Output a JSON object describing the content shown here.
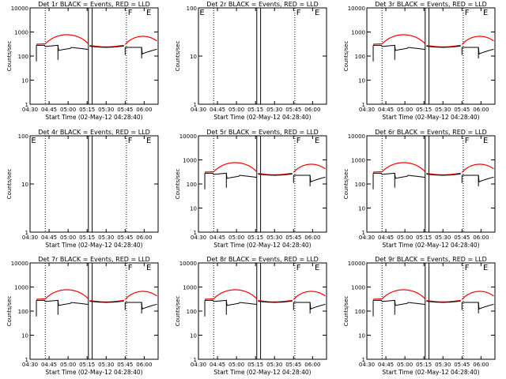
{
  "figure": {
    "background": "#ffffff",
    "event_color": "#000000",
    "lld_color": "#ff0000"
  },
  "chart_data": [
    {
      "type": "line",
      "title": "Det 1r BLACK = Events, RED = LLD",
      "xlabel": "Start Time (02-May-12 04:28:40)",
      "ylabel": "Counts/sec",
      "yscale": "log",
      "ylim": [
        1,
        10000
      ],
      "yticks": [
        "1",
        "10",
        "100",
        "1000",
        "10000"
      ],
      "xticks": [
        "04:30",
        "04:45",
        "05:00",
        "05:15",
        "05:30",
        "05:45",
        "06:00"
      ],
      "markers": [
        "F",
        "E"
      ],
      "no_data": false
    },
    {
      "type": "line",
      "title": "Det 2r BLACK = Events, RED = LLD",
      "xlabel": "Start Time (02-May-12 04:28:40)",
      "ylabel": "Counts/sec",
      "yscale": "log",
      "ylim": [
        1,
        100
      ],
      "yticks": [
        "1",
        "10",
        "100"
      ],
      "xticks": [
        "04:30",
        "04:45",
        "05:00",
        "05:15",
        "05:30",
        "05:45",
        "06:00"
      ],
      "markers": [
        "E",
        "F",
        "E"
      ],
      "no_data": true
    },
    {
      "type": "line",
      "title": "Det 3r BLACK = Events, RED = LLD",
      "xlabel": "Start Time (02-May-12 04:28:40)",
      "ylabel": "Counts/sec",
      "yscale": "log",
      "ylim": [
        1,
        10000
      ],
      "yticks": [
        "1",
        "10",
        "100",
        "1000",
        "10000"
      ],
      "xticks": [
        "04:30",
        "04:45",
        "05:00",
        "05:15",
        "05:30",
        "05:45",
        "06:00"
      ],
      "markers": [
        "F",
        "E"
      ],
      "no_data": false
    },
    {
      "type": "line",
      "title": "Det 4r BLACK = Events, RED = LLD",
      "xlabel": "Start Time (02-May-12 04:28:40)",
      "ylabel": "Counts/sec",
      "yscale": "log",
      "ylim": [
        1,
        100
      ],
      "yticks": [
        "1",
        "10",
        "100"
      ],
      "xticks": [
        "04:30",
        "04:45",
        "05:00",
        "05:15",
        "05:30",
        "05:45",
        "06:00"
      ],
      "markers": [
        "E",
        "F",
        "E"
      ],
      "no_data": true
    },
    {
      "type": "line",
      "title": "Det 5r BLACK = Events, RED = LLD",
      "xlabel": "Start Time (02-May-12 04:28:40)",
      "ylabel": "Counts/sec",
      "yscale": "log",
      "ylim": [
        1,
        10000
      ],
      "yticks": [
        "1",
        "10",
        "100",
        "1000",
        "10000"
      ],
      "xticks": [
        "04:30",
        "04:45",
        "05:00",
        "05:15",
        "05:30",
        "05:45",
        "06:00"
      ],
      "markers": [
        "F",
        "E"
      ],
      "no_data": false
    },
    {
      "type": "line",
      "title": "Det 6r BLACK = Events, RED = LLD",
      "xlabel": "Start Time (02-May-12 04:28:40)",
      "ylabel": "Counts/sec",
      "yscale": "log",
      "ylim": [
        1,
        10000
      ],
      "yticks": [
        "1",
        "10",
        "100",
        "1000",
        "10000"
      ],
      "xticks": [
        "04:30",
        "04:45",
        "05:00",
        "05:15",
        "05:30",
        "05:45",
        "06:00"
      ],
      "markers": [
        "F",
        "E"
      ],
      "no_data": false
    },
    {
      "type": "line",
      "title": "Det 7r BLACK = Events, RED = LLD",
      "xlabel": "Start Time (02-May-12 04:28:40)",
      "ylabel": "Counts/sec",
      "yscale": "log",
      "ylim": [
        1,
        10000
      ],
      "yticks": [
        "1",
        "10",
        "100",
        "1000",
        "10000"
      ],
      "xticks": [
        "04:30",
        "04:45",
        "05:00",
        "05:15",
        "05:30",
        "05:45",
        "06:00"
      ],
      "markers": [
        "F",
        "E"
      ],
      "no_data": false
    },
    {
      "type": "line",
      "title": "Det 8r BLACK = Events, RED = LLD",
      "xlabel": "Start Time (02-May-12 04:28:40)",
      "ylabel": "Counts/sec",
      "yscale": "log",
      "ylim": [
        1,
        10000
      ],
      "yticks": [
        "1",
        "10",
        "100",
        "1000",
        "10000"
      ],
      "xticks": [
        "04:30",
        "04:45",
        "05:00",
        "05:15",
        "05:30",
        "05:45",
        "06:00"
      ],
      "markers": [
        "F",
        "E"
      ],
      "no_data": false
    },
    {
      "type": "line",
      "title": "Det 9r BLACK = Events, RED = LLD",
      "xlabel": "Start Time (02-May-12 04:28:40)",
      "ylabel": "Counts/sec",
      "yscale": "log",
      "ylim": [
        1,
        10000
      ],
      "yticks": [
        "1",
        "10",
        "100",
        "1000",
        "10000"
      ],
      "xticks": [
        "04:30",
        "04:45",
        "05:00",
        "05:15",
        "05:30",
        "05:45",
        "06:00"
      ],
      "markers": [
        "F",
        "E"
      ],
      "no_data": false
    }
  ]
}
